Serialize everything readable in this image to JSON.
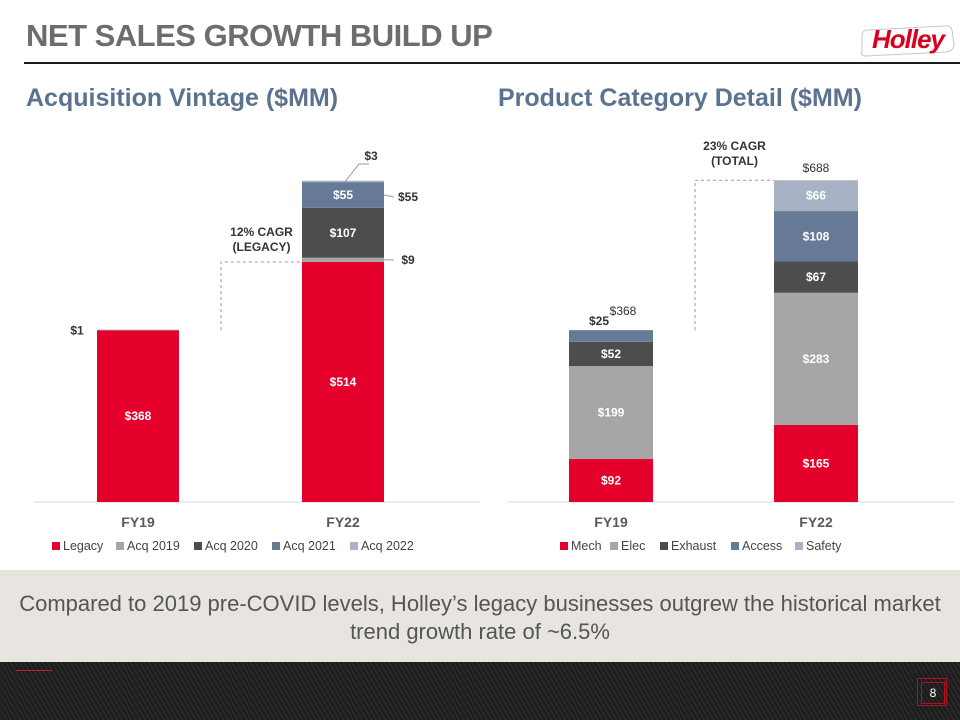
{
  "header": {
    "title": "NET SALES GROWTH BUILD UP",
    "logo_text": "Holley",
    "subtitle_left": "Acquisition Vintage ($MM)",
    "subtitle_right": "Product Category Detail ($MM)"
  },
  "colors": {
    "accent_red": "#e4002b",
    "title_gray": "#6d6d6d",
    "subtitle_blue": "#5c7390"
  },
  "chart_data": [
    {
      "type": "bar",
      "stacked": true,
      "title": "Acquisition Vintage ($MM)",
      "categories": [
        "FY19",
        "FY22"
      ],
      "series": [
        {
          "name": "Legacy",
          "values": [
            368,
            514
          ],
          "labels": [
            "$368",
            "$514"
          ],
          "color": "#e4002b"
        },
        {
          "name": "Acq 2019",
          "values": [
            1,
            9
          ],
          "labels": [
            "$1",
            "$9"
          ],
          "color": "#a6a6a6"
        },
        {
          "name": "Acq 2020",
          "values": [
            0,
            107
          ],
          "labels": [
            "",
            "$107"
          ],
          "color": "#4d4d4d"
        },
        {
          "name": "Acq 2021",
          "values": [
            0,
            55
          ],
          "labels": [
            "",
            "$55"
          ],
          "color": "#667a98"
        },
        {
          "name": "Acq 2022",
          "values": [
            0,
            3
          ],
          "labels": [
            "",
            "$3"
          ],
          "color": "#a7b3c5"
        }
      ],
      "annotation": "12% CAGR\n(LEGACY)",
      "legend_position": "bottom",
      "ylim": [
        0,
        700
      ]
    },
    {
      "type": "bar",
      "stacked": true,
      "title": "Product Category Detail ($MM)",
      "categories": [
        "FY19",
        "FY22"
      ],
      "series": [
        {
          "name": "Mech",
          "values": [
            92,
            165
          ],
          "labels": [
            "$92",
            "$165"
          ],
          "color": "#e4002b"
        },
        {
          "name": "Elec",
          "values": [
            199,
            283
          ],
          "labels": [
            "$199",
            "$283"
          ],
          "color": "#a6a6a6"
        },
        {
          "name": "Exhaust",
          "values": [
            52,
            67
          ],
          "labels": [
            "$52",
            "$67"
          ],
          "color": "#4d4d4d"
        },
        {
          "name": "Access",
          "values": [
            25,
            108
          ],
          "labels": [
            "$25",
            "$108"
          ],
          "color": "#667a98"
        },
        {
          "name": "Safety",
          "values": [
            0,
            66
          ],
          "labels": [
            "",
            "$66"
          ],
          "color": "#a7b3c5"
        }
      ],
      "totals": [
        "$368",
        "$688"
      ],
      "annotation": "23% CAGR\n(TOTAL)",
      "legend_position": "bottom",
      "ylim": [
        0,
        700
      ]
    }
  ],
  "callout": {
    "text": "Compared to 2019 pre-COVID levels, Holley’s legacy businesses outgrew the historical market trend growth rate of ~6.5%"
  },
  "footer": {
    "page_number": "8"
  }
}
